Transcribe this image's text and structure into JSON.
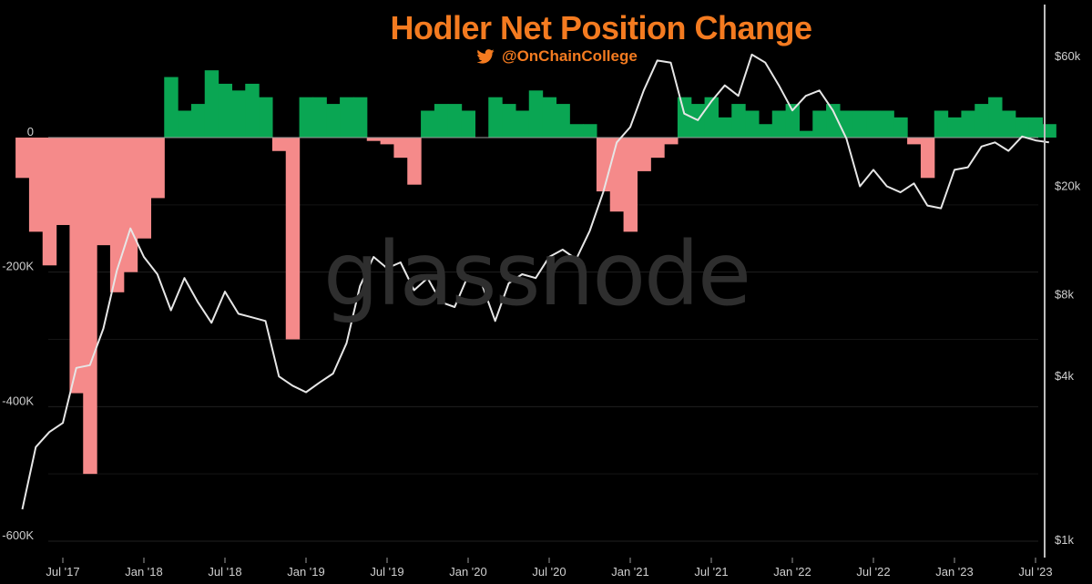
{
  "chart_data": {
    "type": "area",
    "title": "Hodler Net Position Change",
    "subtitle": "@OnChainCollege",
    "watermark": "glassnode",
    "x_ticks": [
      "Jul '17",
      "Jan '18",
      "Jul '18",
      "Jan '19",
      "Jul '19",
      "Jan '20",
      "Jul '20",
      "Jan '21",
      "Jul '21",
      "Jan '22",
      "Jul '22",
      "Jan '23",
      "Jul '23"
    ],
    "y_left_ticks": [
      "0",
      "-200K",
      "-400K",
      "-600K"
    ],
    "y_right_ticks": [
      "$60k",
      "$20k",
      "$8k",
      "$4k",
      "$1k"
    ],
    "y_left_range": [
      -600000,
      100000
    ],
    "y_right_scale": "log",
    "grid": true,
    "colors": {
      "positive": "#0aa653",
      "negative": "#f58a8a",
      "price": "#e6e6e6",
      "title": "#f47b20",
      "background": "#000000"
    },
    "series": [
      {
        "kind": "area",
        "x": [
          "2017-04",
          "2017-05",
          "2017-06",
          "2017-07",
          "2017-08",
          "2017-09",
          "2017-10",
          "2017-11",
          "2017-12",
          "2018-01",
          "2018-02",
          "2018-03",
          "2018-04",
          "2018-05",
          "2018-06",
          "2018-07",
          "2018-08",
          "2018-09",
          "2018-10",
          "2018-11",
          "2018-12",
          "2019-01",
          "2019-02",
          "2019-03",
          "2019-04",
          "2019-05",
          "2019-06",
          "2019-07",
          "2019-08",
          "2019-09",
          "2019-10",
          "2019-11",
          "2019-12",
          "2020-01",
          "2020-02",
          "2020-03",
          "2020-04",
          "2020-05",
          "2020-06",
          "2020-07",
          "2020-08",
          "2020-09",
          "2020-10",
          "2020-11",
          "2020-12",
          "2021-01",
          "2021-02",
          "2021-03",
          "2021-04",
          "2021-05",
          "2021-06",
          "2021-07",
          "2021-08",
          "2021-09",
          "2021-10",
          "2021-11",
          "2021-12",
          "2022-01",
          "2022-02",
          "2022-03",
          "2022-04",
          "2022-05",
          "2022-06",
          "2022-07",
          "2022-08",
          "2022-09",
          "2022-10",
          "2022-11",
          "2022-12",
          "2023-01",
          "2023-02",
          "2023-03",
          "2023-04",
          "2023-05",
          "2023-06",
          "2023-07",
          "2023-08"
        ],
        "values": [
          -60000,
          -140000,
          -190000,
          -130000,
          -380000,
          -500000,
          -160000,
          -230000,
          -200000,
          -150000,
          -90000,
          90000,
          40000,
          50000,
          100000,
          80000,
          70000,
          80000,
          60000,
          -20000,
          -300000,
          60000,
          60000,
          50000,
          60000,
          60000,
          -5000,
          -10000,
          -30000,
          -70000,
          40000,
          50000,
          50000,
          40000,
          0,
          60000,
          50000,
          40000,
          70000,
          60000,
          50000,
          20000,
          20000,
          -80000,
          -110000,
          -140000,
          -50000,
          -30000,
          -10000,
          60000,
          50000,
          60000,
          30000,
          50000,
          40000,
          20000,
          40000,
          50000,
          10000,
          40000,
          50000,
          40000,
          40000,
          40000,
          40000,
          30000,
          -10000,
          -60000,
          40000,
          30000,
          40000,
          50000,
          60000,
          40000,
          30000,
          30000,
          20000
        ]
      },
      {
        "kind": "line",
        "x": [
          "2017-04",
          "2017-05",
          "2017-06",
          "2017-07",
          "2017-08",
          "2017-09",
          "2017-10",
          "2017-11",
          "2017-12",
          "2018-01",
          "2018-02",
          "2018-03",
          "2018-04",
          "2018-05",
          "2018-06",
          "2018-07",
          "2018-08",
          "2018-09",
          "2018-10",
          "2018-11",
          "2018-12",
          "2019-01",
          "2019-02",
          "2019-03",
          "2019-04",
          "2019-05",
          "2019-06",
          "2019-07",
          "2019-08",
          "2019-09",
          "2019-10",
          "2019-11",
          "2019-12",
          "2020-01",
          "2020-02",
          "2020-03",
          "2020-04",
          "2020-05",
          "2020-06",
          "2020-07",
          "2020-08",
          "2020-09",
          "2020-10",
          "2020-11",
          "2020-12",
          "2021-01",
          "2021-02",
          "2021-03",
          "2021-04",
          "2021-05",
          "2021-06",
          "2021-07",
          "2021-08",
          "2021-09",
          "2021-10",
          "2021-11",
          "2021-12",
          "2022-01",
          "2022-02",
          "2022-03",
          "2022-04",
          "2022-05",
          "2022-06",
          "2022-07",
          "2022-08",
          "2022-09",
          "2022-10",
          "2022-11",
          "2022-12",
          "2023-01",
          "2023-02",
          "2023-03",
          "2023-04",
          "2023-05",
          "2023-06",
          "2023-07",
          "2023-08"
        ],
        "values": [
          1300,
          2200,
          2500,
          2700,
          4300,
          4400,
          6000,
          9800,
          14000,
          11000,
          9500,
          7000,
          9200,
          7500,
          6300,
          8200,
          6800,
          6600,
          6400,
          4000,
          3700,
          3500,
          3800,
          4100,
          5300,
          8600,
          11000,
          10000,
          10500,
          8300,
          9200,
          7500,
          7200,
          9400,
          8800,
          6400,
          8800,
          9500,
          9200,
          11000,
          11700,
          10800,
          13700,
          19000,
          29000,
          33000,
          45000,
          58000,
          57000,
          37000,
          35000,
          41000,
          47000,
          43000,
          61000,
          57000,
          47000,
          38000,
          43000,
          45000,
          38000,
          30000,
          20000,
          23000,
          20000,
          19000,
          20500,
          17000,
          16600,
          23000,
          23500,
          28000,
          29000,
          27000,
          30500,
          29500,
          29000
        ]
      }
    ]
  }
}
